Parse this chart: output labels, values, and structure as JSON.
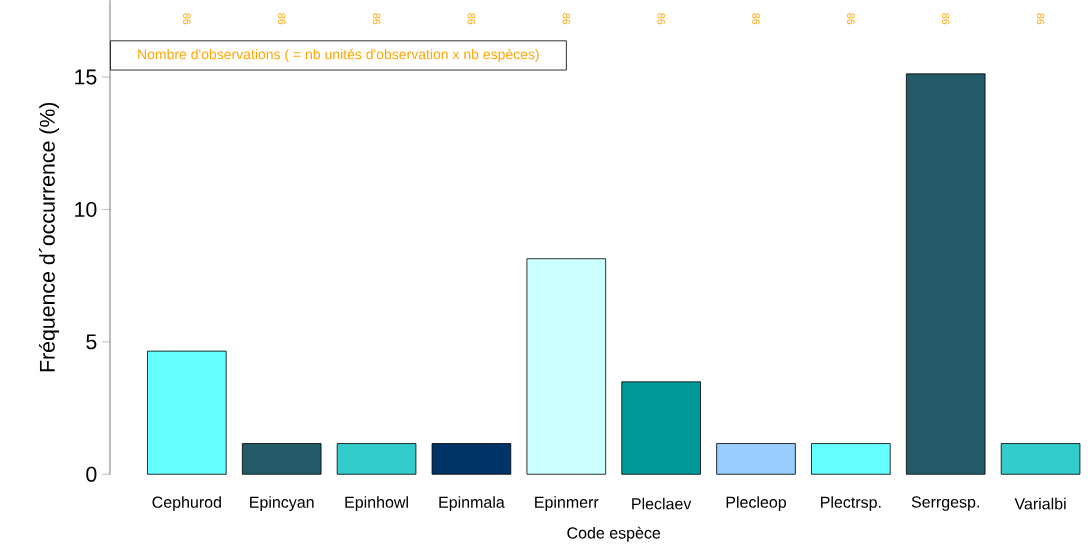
{
  "chart_data": {
    "type": "bar",
    "xlabel": "Code espèce",
    "ylabel": "Fréquence d´occurrence (%)",
    "categories": [
      "Cephurod",
      "Epincyan",
      "Epinhowl",
      "Epinmala",
      "Epinmerr",
      "Pleclaev",
      "Plecleop",
      "Plectrsp.",
      "Serrgesp.",
      "Varialbi"
    ],
    "values": [
      4.65,
      1.16,
      1.16,
      1.16,
      8.14,
      3.49,
      1.16,
      1.16,
      15.12,
      1.16
    ],
    "colors": [
      "#66ffff",
      "#235b69",
      "#33cccc",
      "#003366",
      "#ccffff",
      "#009999",
      "#99ccff",
      "#66ffff",
      "#235b69",
      "#33cccc"
    ],
    "ylim": [
      0,
      17.9
    ],
    "yticks": [
      0,
      5,
      10,
      15
    ],
    "grid": false,
    "annotations": [
      "Nombre d'observations ( = nb unités d'observation x nb espèces)",
      "86",
      "86",
      "86",
      "86",
      "86",
      "86",
      "86",
      "86",
      "86",
      "86"
    ]
  }
}
